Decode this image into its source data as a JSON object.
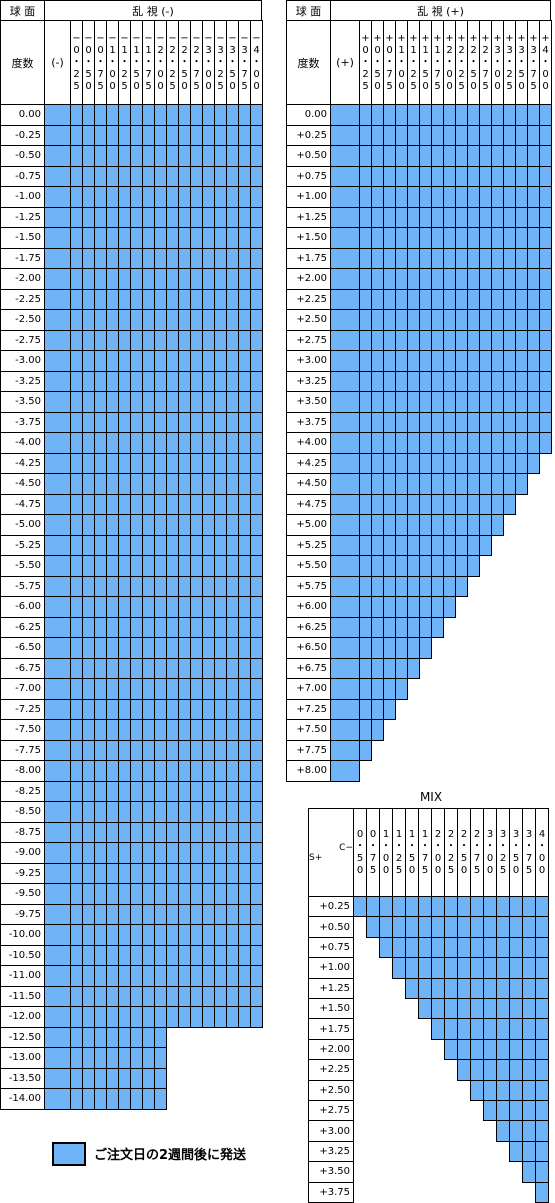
{
  "minus_table": {
    "sphere_label": "球 面",
    "astig_label": "乱 視 (-)",
    "power_label": "度数",
    "sign_label": "(-)",
    "cylinders": [
      [
        "−",
        "0",
        "・",
        "2",
        "5"
      ],
      [
        "−",
        "0",
        "・",
        "5",
        "0"
      ],
      [
        "−",
        "0",
        "・",
        "7",
        "5"
      ],
      [
        "−",
        "1",
        "・",
        "0",
        "0"
      ],
      [
        "−",
        "1",
        "・",
        "2",
        "5"
      ],
      [
        "−",
        "1",
        "・",
        "5",
        "0"
      ],
      [
        "−",
        "1",
        "・",
        "7",
        "5"
      ],
      [
        "−",
        "2",
        "・",
        "0",
        "0"
      ],
      [
        "−",
        "2",
        "・",
        "2",
        "5"
      ],
      [
        "−",
        "2",
        "・",
        "5",
        "0"
      ],
      [
        "−",
        "2",
        "・",
        "7",
        "5"
      ],
      [
        "−",
        "3",
        "・",
        "0",
        "0"
      ],
      [
        "−",
        "3",
        "・",
        "2",
        "5"
      ],
      [
        "−",
        "3",
        "・",
        "5",
        "0"
      ],
      [
        "−",
        "3",
        "・",
        "7",
        "5"
      ],
      [
        "−",
        "4",
        "・",
        "0",
        "0"
      ]
    ],
    "rows": [
      {
        "power": "0.00",
        "available": 17
      },
      {
        "power": "-0.25",
        "available": 17
      },
      {
        "power": "-0.50",
        "available": 17
      },
      {
        "power": "-0.75",
        "available": 17
      },
      {
        "power": "-1.00",
        "available": 17
      },
      {
        "power": "-1.25",
        "available": 17
      },
      {
        "power": "-1.50",
        "available": 17
      },
      {
        "power": "-1.75",
        "available": 17
      },
      {
        "power": "-2.00",
        "available": 17
      },
      {
        "power": "-2.25",
        "available": 17
      },
      {
        "power": "-2.50",
        "available": 17
      },
      {
        "power": "-2.75",
        "available": 17
      },
      {
        "power": "-3.00",
        "available": 17
      },
      {
        "power": "-3.25",
        "available": 17
      },
      {
        "power": "-3.50",
        "available": 17
      },
      {
        "power": "-3.75",
        "available": 17
      },
      {
        "power": "-4.00",
        "available": 17
      },
      {
        "power": "-4.25",
        "available": 17
      },
      {
        "power": "-4.50",
        "available": 17
      },
      {
        "power": "-4.75",
        "available": 17
      },
      {
        "power": "-5.00",
        "available": 17
      },
      {
        "power": "-5.25",
        "available": 17
      },
      {
        "power": "-5.50",
        "available": 17
      },
      {
        "power": "-5.75",
        "available": 17
      },
      {
        "power": "-6.00",
        "available": 17
      },
      {
        "power": "-6.25",
        "available": 17
      },
      {
        "power": "-6.50",
        "available": 17
      },
      {
        "power": "-6.75",
        "available": 17
      },
      {
        "power": "-7.00",
        "available": 17
      },
      {
        "power": "-7.25",
        "available": 17
      },
      {
        "power": "-7.50",
        "available": 17
      },
      {
        "power": "-7.75",
        "available": 17
      },
      {
        "power": "-8.00",
        "available": 17
      },
      {
        "power": "-8.25",
        "available": 17
      },
      {
        "power": "-8.50",
        "available": 17
      },
      {
        "power": "-8.75",
        "available": 17
      },
      {
        "power": "-9.00",
        "available": 17
      },
      {
        "power": "-9.25",
        "available": 17
      },
      {
        "power": "-9.50",
        "available": 17
      },
      {
        "power": "-9.75",
        "available": 17
      },
      {
        "power": "-10.00",
        "available": 17
      },
      {
        "power": "-10.50",
        "available": 17
      },
      {
        "power": "-11.00",
        "available": 17
      },
      {
        "power": "-11.50",
        "available": 17
      },
      {
        "power": "-12.00",
        "available": 17
      },
      {
        "power": "-12.50",
        "available": 9
      },
      {
        "power": "-13.00",
        "available": 9
      },
      {
        "power": "-13.50",
        "available": 9
      },
      {
        "power": "-14.00",
        "available": 9
      }
    ]
  },
  "plus_table": {
    "sphere_label": "球 面",
    "astig_label": "乱 視 (+)",
    "power_label": "度数",
    "sign_label": "(+)",
    "cylinders": [
      [
        "+",
        "0",
        "・",
        "2",
        "5"
      ],
      [
        "+",
        "0",
        "・",
        "5",
        "0"
      ],
      [
        "+",
        "0",
        "・",
        "7",
        "5"
      ],
      [
        "+",
        "1",
        "・",
        "0",
        "0"
      ],
      [
        "+",
        "1",
        "・",
        "2",
        "5"
      ],
      [
        "+",
        "1",
        "・",
        "5",
        "0"
      ],
      [
        "+",
        "1",
        "・",
        "7",
        "5"
      ],
      [
        "+",
        "2",
        "・",
        "0",
        "0"
      ],
      [
        "+",
        "2",
        "・",
        "2",
        "5"
      ],
      [
        "+",
        "2",
        "・",
        "5",
        "0"
      ],
      [
        "+",
        "2",
        "・",
        "7",
        "5"
      ],
      [
        "+",
        "3",
        "・",
        "0",
        "0"
      ],
      [
        "+",
        "3",
        "・",
        "2",
        "5"
      ],
      [
        "+",
        "3",
        "・",
        "5",
        "0"
      ],
      [
        "+",
        "3",
        "・",
        "7",
        "5"
      ],
      [
        "+",
        "4",
        "・",
        "0",
        "0"
      ]
    ],
    "rows": [
      {
        "power": "0.00",
        "available": 17
      },
      {
        "power": "+0.25",
        "available": 17
      },
      {
        "power": "+0.50",
        "available": 17
      },
      {
        "power": "+0.75",
        "available": 17
      },
      {
        "power": "+1.00",
        "available": 17
      },
      {
        "power": "+1.25",
        "available": 17
      },
      {
        "power": "+1.50",
        "available": 17
      },
      {
        "power": "+1.75",
        "available": 17
      },
      {
        "power": "+2.00",
        "available": 17
      },
      {
        "power": "+2.25",
        "available": 17
      },
      {
        "power": "+2.50",
        "available": 17
      },
      {
        "power": "+2.75",
        "available": 17
      },
      {
        "power": "+3.00",
        "available": 17
      },
      {
        "power": "+3.25",
        "available": 17
      },
      {
        "power": "+3.50",
        "available": 17
      },
      {
        "power": "+3.75",
        "available": 17
      },
      {
        "power": "+4.00",
        "available": 17
      },
      {
        "power": "+4.25",
        "available": 16
      },
      {
        "power": "+4.50",
        "available": 15
      },
      {
        "power": "+4.75",
        "available": 14
      },
      {
        "power": "+5.00",
        "available": 13
      },
      {
        "power": "+5.25",
        "available": 12
      },
      {
        "power": "+5.50",
        "available": 11
      },
      {
        "power": "+5.75",
        "available": 10
      },
      {
        "power": "+6.00",
        "available": 9
      },
      {
        "power": "+6.25",
        "available": 8
      },
      {
        "power": "+6.50",
        "available": 7
      },
      {
        "power": "+6.75",
        "available": 6
      },
      {
        "power": "+7.00",
        "available": 5
      },
      {
        "power": "+7.25",
        "available": 4
      },
      {
        "power": "+7.50",
        "available": 3
      },
      {
        "power": "+7.75",
        "available": 2
      },
      {
        "power": "+8.00",
        "available": 1
      }
    ]
  },
  "mix_table": {
    "title": "MIX",
    "corner_top": "C−",
    "corner_bottom": "S+",
    "cylinders": [
      [
        "0",
        "・",
        "5",
        "0"
      ],
      [
        "0",
        "・",
        "7",
        "5"
      ],
      [
        "1",
        "・",
        "0",
        "0"
      ],
      [
        "1",
        "・",
        "2",
        "5"
      ],
      [
        "1",
        "・",
        "5",
        "0"
      ],
      [
        "1",
        "・",
        "7",
        "5"
      ],
      [
        "2",
        "・",
        "0",
        "0"
      ],
      [
        "2",
        "・",
        "2",
        "5"
      ],
      [
        "2",
        "・",
        "5",
        "0"
      ],
      [
        "2",
        "・",
        "7",
        "5"
      ],
      [
        "3",
        "・",
        "0",
        "0"
      ],
      [
        "3",
        "・",
        "2",
        "5"
      ],
      [
        "3",
        "・",
        "5",
        "0"
      ],
      [
        "3",
        "・",
        "7",
        "5"
      ],
      [
        "4",
        "・",
        "0",
        "0"
      ]
    ],
    "rows": [
      {
        "power": "+0.25",
        "start": 0
      },
      {
        "power": "+0.50",
        "start": 1
      },
      {
        "power": "+0.75",
        "start": 2
      },
      {
        "power": "+1.00",
        "start": 3
      },
      {
        "power": "+1.25",
        "start": 4
      },
      {
        "power": "+1.50",
        "start": 5
      },
      {
        "power": "+1.75",
        "start": 6
      },
      {
        "power": "+2.00",
        "start": 7
      },
      {
        "power": "+2.25",
        "start": 8
      },
      {
        "power": "+2.50",
        "start": 9
      },
      {
        "power": "+2.75",
        "start": 10
      },
      {
        "power": "+3.00",
        "start": 11
      },
      {
        "power": "+3.25",
        "start": 12
      },
      {
        "power": "+3.50",
        "start": 13
      },
      {
        "power": "+3.75",
        "start": 14
      }
    ]
  },
  "legend": {
    "text": "ご注文日の2週間後に発送",
    "color": "#70b4f8"
  }
}
